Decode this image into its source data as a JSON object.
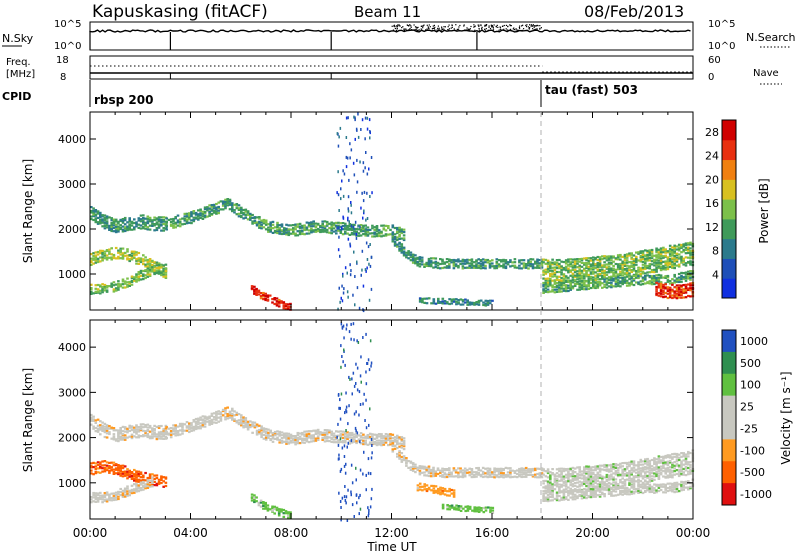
{
  "header": {
    "station": "Kapuskasing (fitACF)",
    "beam": "Beam 11",
    "date": "08/Feb/2013"
  },
  "panel_sky": {
    "left_label": "N.Sky",
    "right_label": "N.Search",
    "left_ticks": [
      "10^5",
      "10^0"
    ],
    "right_ticks": [
      "10^5",
      "10^0"
    ]
  },
  "panel_freq": {
    "left_label_1": "Freq.",
    "left_label_2": "[MHz]",
    "right_label": "Nave",
    "left_ticks": [
      "18",
      "8"
    ],
    "right_ticks": [
      "60",
      "0"
    ]
  },
  "cpid": {
    "label": "CPID",
    "programs": [
      "rbsp 200",
      "tau (fast) 503"
    ]
  },
  "colors": {
    "power": [
      "#1030e0",
      "#1e4fb8",
      "#2b7a8c",
      "#3f9a5a",
      "#7cc04a",
      "#d8c020",
      "#f08010",
      "#e83010",
      "#d00000"
    ],
    "velocity": [
      "#e01010",
      "#ff6000",
      "#ff9a20",
      "#c8c8c0",
      "#c8c8c0",
      "#60c040",
      "#2f8f50",
      "#2050c0"
    ]
  },
  "chart_data": [
    {
      "type": "heatmap",
      "name": "power",
      "xlabel": "",
      "ylabel": "Slant Range [km]",
      "x_ticks": [
        "00:00",
        "04:00",
        "08:00",
        "12:00",
        "16:00",
        "20:00",
        "00:00"
      ],
      "y_ticks": [
        "1000",
        "2000",
        "3000",
        "4000"
      ],
      "xlim_hours": [
        0,
        24
      ],
      "ylim_km": [
        200,
        4600
      ],
      "colorbar": {
        "label": "Power [dB]",
        "ticks": [
          "4",
          "8",
          "12",
          "16",
          "20",
          "24",
          "28"
        ],
        "range": [
          0,
          30
        ]
      },
      "bands": [
        {
          "t": [
            0.0,
            0.5,
            1.0,
            1.5,
            2.0,
            2.5,
            3.0
          ],
          "r": [
            2400,
            2200,
            2100,
            2150,
            2200,
            2150,
            2150
          ],
          "w": 150,
          "level": 10
        },
        {
          "t": [
            0.0,
            0.5,
            1.0,
            1.5,
            2.0,
            2.5,
            3.0
          ],
          "r": [
            1350,
            1450,
            1500,
            1450,
            1350,
            1200,
            1050
          ],
          "w": 120,
          "level": 16
        },
        {
          "t": [
            0.0,
            0.5,
            1.0,
            1.5,
            2.0,
            2.5,
            3.0
          ],
          "r": [
            680,
            700,
            750,
            850,
            1000,
            1100,
            1150
          ],
          "w": 90,
          "level": 14
        },
        {
          "t": [
            3.0,
            4.0,
            5.0,
            5.5,
            6.0,
            7.0,
            8.0,
            9.0,
            10.0,
            11.0,
            12.0,
            12.5
          ],
          "r": [
            2150,
            2300,
            2500,
            2600,
            2400,
            2100,
            2000,
            2100,
            2050,
            2000,
            2000,
            1900
          ],
          "w": 130,
          "level": 11
        },
        {
          "t": [
            12.0,
            12.5,
            13.0,
            14.0,
            15.0,
            16.0,
            17.0,
            18.0
          ],
          "r": [
            1800,
            1500,
            1300,
            1250,
            1250,
            1250,
            1250,
            1250
          ],
          "w": 90,
          "level": 10
        },
        {
          "t": [
            18.0,
            19.0,
            20.0,
            21.0,
            22.0,
            23.0,
            24.0
          ],
          "r": [
            1100,
            1100,
            1150,
            1200,
            1300,
            1400,
            1500
          ],
          "w": 260,
          "level": 14
        },
        {
          "t": [
            18.0,
            19.0,
            20.0,
            21.0,
            22.0,
            23.0,
            24.0
          ],
          "r": [
            700,
            750,
            800,
            850,
            900,
            900,
            1000
          ],
          "w": 90,
          "level": 12
        },
        {
          "t": [
            6.4,
            6.8,
            7.2,
            7.6,
            8.0
          ],
          "r": [
            700,
            550,
            450,
            350,
            300
          ],
          "w": 70,
          "level": 28
        },
        {
          "t": [
            13.0,
            14.0,
            15.0,
            16.0
          ],
          "r": [
            450,
            420,
            400,
            380
          ],
          "w": 50,
          "level": 8
        },
        {
          "t": [
            22.5,
            23.0,
            23.5,
            24.0
          ],
          "r": [
            700,
            650,
            650,
            700
          ],
          "w": 150,
          "level": 26
        }
      ]
    },
    {
      "type": "heatmap",
      "name": "velocity",
      "xlabel": "Time UT",
      "ylabel": "Slant Range [km]",
      "x_ticks": [
        "00:00",
        "04:00",
        "08:00",
        "12:00",
        "16:00",
        "20:00",
        "00:00"
      ],
      "y_ticks": [
        "1000",
        "2000",
        "3000",
        "4000"
      ],
      "xlim_hours": [
        0,
        24
      ],
      "ylim_km": [
        200,
        4600
      ],
      "colorbar": {
        "label": "Velocity [m s⁻¹]",
        "ticks": [
          "1000",
          "500",
          "100",
          "25",
          "-25",
          "-100",
          "-500",
          "-1000"
        ]
      },
      "bands": [
        {
          "t": [
            0.0,
            0.5,
            1.0,
            1.5,
            2.0,
            2.5,
            3.0
          ],
          "r": [
            2400,
            2200,
            2100,
            2150,
            2200,
            2150,
            2150
          ],
          "w": 150,
          "cat": 3
        },
        {
          "t": [
            0.0,
            0.5,
            1.0,
            1.5,
            2.0,
            2.5,
            3.0
          ],
          "r": [
            1350,
            1400,
            1350,
            1250,
            1150,
            1100,
            1050
          ],
          "w": 130,
          "cat": 1
        },
        {
          "t": [
            0.0,
            0.5,
            1.0,
            1.5,
            2.0,
            2.5
          ],
          "r": [
            700,
            700,
            750,
            850,
            950,
            1050
          ],
          "w": 90,
          "cat": 3
        },
        {
          "t": [
            3.0,
            4.0,
            5.0,
            5.5,
            6.0,
            7.0,
            8.0,
            9.0,
            10.0,
            11.0,
            12.0,
            12.5
          ],
          "r": [
            2150,
            2300,
            2500,
            2600,
            2400,
            2100,
            2000,
            2100,
            2050,
            2000,
            2000,
            1900
          ],
          "w": 130,
          "cat": 3
        },
        {
          "t": [
            12.0,
            12.5,
            13.0,
            14.0,
            15.0,
            16.0,
            17.0,
            18.0
          ],
          "r": [
            1800,
            1500,
            1300,
            1250,
            1250,
            1250,
            1250,
            1250
          ],
          "w": 90,
          "cat": 3
        },
        {
          "t": [
            18.0,
            19.0,
            20.0,
            21.0,
            22.0,
            23.0,
            24.0
          ],
          "r": [
            1100,
            1100,
            1150,
            1200,
            1300,
            1400,
            1500
          ],
          "w": 260,
          "cat": 4
        },
        {
          "t": [
            18.0,
            19.0,
            20.0,
            21.0,
            22.0,
            23.0,
            24.0
          ],
          "r": [
            700,
            750,
            800,
            850,
            900,
            900,
            1000
          ],
          "w": 90,
          "cat": 4
        },
        {
          "t": [
            6.4,
            6.8,
            7.2,
            7.6,
            8.0
          ],
          "r": [
            700,
            550,
            450,
            350,
            300
          ],
          "w": 70,
          "cat": 5
        },
        {
          "t": [
            13.0,
            13.5,
            14.0,
            14.5
          ],
          "r": [
            950,
            900,
            850,
            800
          ],
          "w": 80,
          "cat": 2
        },
        {
          "t": [
            14.0,
            15.0,
            16.0
          ],
          "r": [
            500,
            450,
            420
          ],
          "w": 50,
          "cat": 5
        }
      ]
    }
  ]
}
